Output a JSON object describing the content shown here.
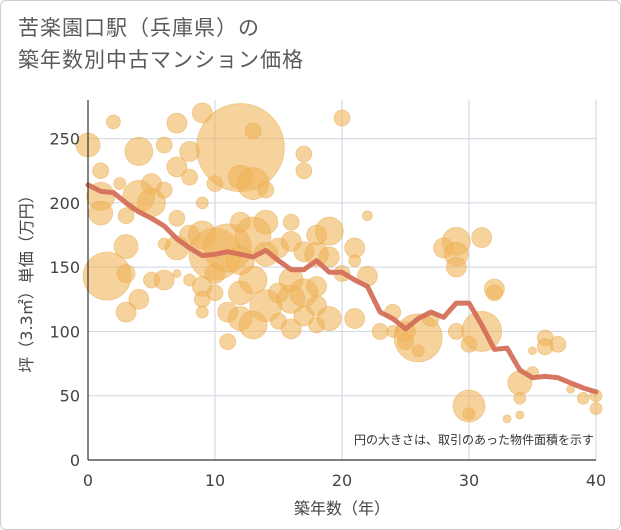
{
  "chart_title_line1": "苦楽園口駅（兵庫県）の",
  "chart_title_line2": "築年数別中古マンション価格",
  "chart_data": {
    "type": "scatter",
    "title": "苦楽園口駅（兵庫県）の築年数別中古マンション価格",
    "xlabel": "築年数（年）",
    "ylabel": "坪（3.3㎡）単価（万円）",
    "xlim": [
      0,
      40
    ],
    "ylim": [
      0,
      280
    ],
    "xticks": [
      0,
      10,
      20,
      30,
      40
    ],
    "yticks": [
      0,
      50,
      100,
      150,
      200,
      250
    ],
    "annotation": "円の大きさは、取引のあった物件面積を示す",
    "bubble_color": "#f0b45a",
    "line_color": "#d4705a",
    "grid": true,
    "bubbles": [
      {
        "x": 0,
        "y": 245,
        "s": 12
      },
      {
        "x": 1,
        "y": 225,
        "s": 8
      },
      {
        "x": 2,
        "y": 263,
        "s": 7
      },
      {
        "x": 1,
        "y": 205,
        "s": 14
      },
      {
        "x": 1,
        "y": 192,
        "s": 12
      },
      {
        "x": 1.5,
        "y": 143,
        "s": 24
      },
      {
        "x": 2.5,
        "y": 215,
        "s": 6
      },
      {
        "x": 3,
        "y": 190,
        "s": 8
      },
      {
        "x": 3,
        "y": 166,
        "s": 12
      },
      {
        "x": 3,
        "y": 145,
        "s": 9
      },
      {
        "x": 3,
        "y": 115,
        "s": 10
      },
      {
        "x": 4,
        "y": 240,
        "s": 14
      },
      {
        "x": 4,
        "y": 205,
        "s": 16
      },
      {
        "x": 4,
        "y": 125,
        "s": 10
      },
      {
        "x": 5,
        "y": 215,
        "s": 10
      },
      {
        "x": 5,
        "y": 200,
        "s": 14
      },
      {
        "x": 5,
        "y": 140,
        "s": 8
      },
      {
        "x": 6,
        "y": 245,
        "s": 8
      },
      {
        "x": 6,
        "y": 210,
        "s": 8
      },
      {
        "x": 6,
        "y": 168,
        "s": 6
      },
      {
        "x": 6,
        "y": 140,
        "s": 10
      },
      {
        "x": 7,
        "y": 262,
        "s": 10
      },
      {
        "x": 7,
        "y": 228,
        "s": 10
      },
      {
        "x": 7,
        "y": 188,
        "s": 8
      },
      {
        "x": 7,
        "y": 165,
        "s": 12
      },
      {
        "x": 7,
        "y": 145,
        "s": 4
      },
      {
        "x": 8,
        "y": 240,
        "s": 10
      },
      {
        "x": 8,
        "y": 220,
        "s": 8
      },
      {
        "x": 8,
        "y": 175,
        "s": 10
      },
      {
        "x": 8,
        "y": 140,
        "s": 6
      },
      {
        "x": 9,
        "y": 270,
        "s": 10
      },
      {
        "x": 9,
        "y": 200,
        "s": 6
      },
      {
        "x": 9,
        "y": 175,
        "s": 14
      },
      {
        "x": 9,
        "y": 135,
        "s": 10
      },
      {
        "x": 9,
        "y": 125,
        "s": 8
      },
      {
        "x": 9,
        "y": 115,
        "s": 6
      },
      {
        "x": 10,
        "y": 215,
        "s": 8
      },
      {
        "x": 10,
        "y": 160,
        "s": 26
      },
      {
        "x": 10,
        "y": 145,
        "s": 10
      },
      {
        "x": 10,
        "y": 130,
        "s": 8
      },
      {
        "x": 11,
        "y": 165,
        "s": 24
      },
      {
        "x": 11,
        "y": 115,
        "s": 10
      },
      {
        "x": 11,
        "y": 92,
        "s": 8
      },
      {
        "x": 12,
        "y": 243,
        "s": 44
      },
      {
        "x": 12,
        "y": 220,
        "s": 12
      },
      {
        "x": 12,
        "y": 185,
        "s": 10
      },
      {
        "x": 12,
        "y": 155,
        "s": 14
      },
      {
        "x": 12,
        "y": 130,
        "s": 12
      },
      {
        "x": 12,
        "y": 110,
        "s": 12
      },
      {
        "x": 13,
        "y": 256,
        "s": 8
      },
      {
        "x": 13,
        "y": 215,
        "s": 16
      },
      {
        "x": 13,
        "y": 175,
        "s": 18
      },
      {
        "x": 13,
        "y": 140,
        "s": 14
      },
      {
        "x": 13,
        "y": 105,
        "s": 14
      },
      {
        "x": 14,
        "y": 210,
        "s": 8
      },
      {
        "x": 14,
        "y": 185,
        "s": 12
      },
      {
        "x": 14,
        "y": 160,
        "s": 12
      },
      {
        "x": 14,
        "y": 120,
        "s": 16
      },
      {
        "x": 15,
        "y": 165,
        "s": 10
      },
      {
        "x": 15,
        "y": 130,
        "s": 10
      },
      {
        "x": 15,
        "y": 108,
        "s": 8
      },
      {
        "x": 16,
        "y": 185,
        "s": 8
      },
      {
        "x": 16,
        "y": 170,
        "s": 10
      },
      {
        "x": 16,
        "y": 140,
        "s": 12
      },
      {
        "x": 16,
        "y": 125,
        "s": 14
      },
      {
        "x": 16,
        "y": 102,
        "s": 10
      },
      {
        "x": 17,
        "y": 238,
        "s": 8
      },
      {
        "x": 17,
        "y": 225,
        "s": 8
      },
      {
        "x": 17,
        "y": 162,
        "s": 10
      },
      {
        "x": 17,
        "y": 130,
        "s": 14
      },
      {
        "x": 17,
        "y": 112,
        "s": 10
      },
      {
        "x": 18,
        "y": 175,
        "s": 10
      },
      {
        "x": 18,
        "y": 160,
        "s": 12
      },
      {
        "x": 18,
        "y": 135,
        "s": 10
      },
      {
        "x": 18,
        "y": 120,
        "s": 10
      },
      {
        "x": 18,
        "y": 105,
        "s": 8
      },
      {
        "x": 19,
        "y": 178,
        "s": 14
      },
      {
        "x": 19,
        "y": 158,
        "s": 10
      },
      {
        "x": 19,
        "y": 110,
        "s": 12
      },
      {
        "x": 20,
        "y": 266,
        "s": 8
      },
      {
        "x": 20,
        "y": 145,
        "s": 8
      },
      {
        "x": 21,
        "y": 165,
        "s": 10
      },
      {
        "x": 21,
        "y": 155,
        "s": 6
      },
      {
        "x": 21,
        "y": 110,
        "s": 10
      },
      {
        "x": 22,
        "y": 190,
        "s": 5
      },
      {
        "x": 22,
        "y": 143,
        "s": 10
      },
      {
        "x": 23,
        "y": 100,
        "s": 8
      },
      {
        "x": 24,
        "y": 115,
        "s": 8
      },
      {
        "x": 24,
        "y": 100,
        "s": 6
      },
      {
        "x": 25,
        "y": 100,
        "s": 10
      },
      {
        "x": 25,
        "y": 92,
        "s": 8
      },
      {
        "x": 26,
        "y": 95,
        "s": 24
      },
      {
        "x": 26,
        "y": 85,
        "s": 6
      },
      {
        "x": 27,
        "y": 110,
        "s": 8
      },
      {
        "x": 28,
        "y": 165,
        "s": 10
      },
      {
        "x": 29,
        "y": 170,
        "s": 14
      },
      {
        "x": 29,
        "y": 160,
        "s": 12
      },
      {
        "x": 29,
        "y": 150,
        "s": 10
      },
      {
        "x": 29,
        "y": 100,
        "s": 8
      },
      {
        "x": 30,
        "y": 90,
        "s": 8
      },
      {
        "x": 30,
        "y": 42,
        "s": 16
      },
      {
        "x": 30,
        "y": 36,
        "s": 6
      },
      {
        "x": 31,
        "y": 173,
        "s": 10
      },
      {
        "x": 31,
        "y": 100,
        "s": 20
      },
      {
        "x": 32,
        "y": 133,
        "s": 10
      },
      {
        "x": 32,
        "y": 130,
        "s": 8
      },
      {
        "x": 33,
        "y": 32,
        "s": 4
      },
      {
        "x": 34,
        "y": 60,
        "s": 12
      },
      {
        "x": 34,
        "y": 48,
        "s": 6
      },
      {
        "x": 34,
        "y": 35,
        "s": 4
      },
      {
        "x": 35,
        "y": 85,
        "s": 4
      },
      {
        "x": 35,
        "y": 68,
        "s": 6
      },
      {
        "x": 36,
        "y": 95,
        "s": 8
      },
      {
        "x": 36,
        "y": 88,
        "s": 8
      },
      {
        "x": 37,
        "y": 90,
        "s": 8
      },
      {
        "x": 38,
        "y": 55,
        "s": 4
      },
      {
        "x": 39,
        "y": 48,
        "s": 6
      },
      {
        "x": 40,
        "y": 50,
        "s": 6
      },
      {
        "x": 40,
        "y": 40,
        "s": 6
      }
    ],
    "trend": {
      "x": [
        0,
        1,
        2,
        3,
        4,
        5,
        6,
        7,
        8,
        9,
        10,
        11,
        12,
        13,
        14,
        15,
        16,
        17,
        18,
        19,
        20,
        21,
        22,
        23,
        24,
        25,
        26,
        27,
        28,
        29,
        30,
        31,
        32,
        33,
        34,
        35,
        36,
        37,
        38,
        39,
        40
      ],
      "y": [
        214,
        209,
        208,
        200,
        193,
        188,
        182,
        172,
        165,
        159,
        160,
        162,
        160,
        158,
        163,
        155,
        148,
        148,
        155,
        146,
        146,
        140,
        135,
        115,
        110,
        102,
        110,
        115,
        111,
        122,
        122,
        105,
        86,
        87,
        70,
        64,
        65,
        64,
        60,
        56,
        53
      ]
    }
  }
}
